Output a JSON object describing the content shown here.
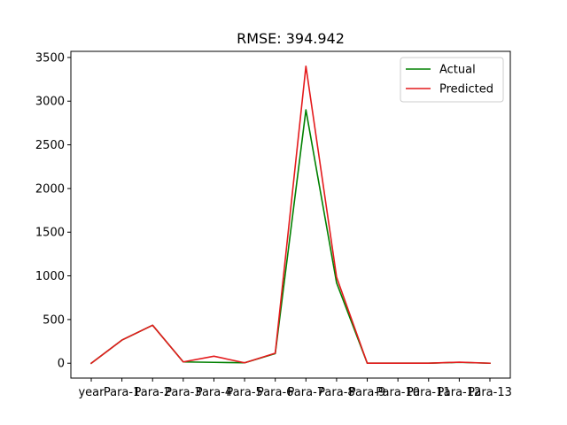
{
  "chart_data": {
    "type": "line",
    "title": "RMSE: 394.942",
    "xlabel": "",
    "ylabel": "",
    "categories": [
      "year",
      "Para-1",
      "Para-2",
      "Para-3",
      "Para-4",
      "Para-5",
      "Para-6",
      "Para-7",
      "Para-8",
      "Para-9",
      "Para-10",
      "Para-11",
      "Para-12",
      "Para-13"
    ],
    "ylim": [
      -170,
      3570
    ],
    "yticks": [
      0,
      500,
      1000,
      1500,
      2000,
      2500,
      3000,
      3500
    ],
    "grid": false,
    "legend_position": "top-right",
    "series": [
      {
        "name": "Actual",
        "color": "#008000",
        "values": [
          0,
          265,
          435,
          15,
          10,
          5,
          110,
          2900,
          920,
          0,
          0,
          0,
          10,
          0
        ]
      },
      {
        "name": "Predicted",
        "color": "#e41a1c",
        "values": [
          0,
          265,
          435,
          15,
          80,
          5,
          115,
          3400,
          985,
          0,
          0,
          0,
          12,
          0
        ]
      }
    ]
  }
}
